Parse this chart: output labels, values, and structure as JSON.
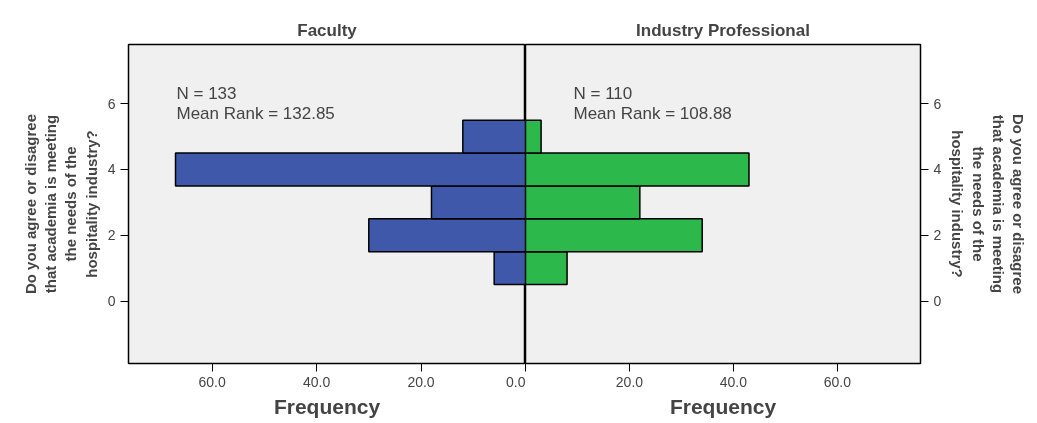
{
  "chart_data": [
    {
      "type": "histogram",
      "orientation": "horizontal",
      "title": "Faculty",
      "xlabel": "Frequency",
      "ylabel": "Do you agree or disagree\nthat academia is meeting\nthe needs of the\nhospitality industry?",
      "bins": [
        0.5,
        1.5,
        2.5,
        3.5,
        4.5,
        5.5
      ],
      "values": [
        6,
        30,
        18,
        67,
        12
      ],
      "color": "#3f58aa",
      "xlim": [
        76,
        0
      ],
      "xticks": [
        {
          "value": 60,
          "label": "60.0"
        },
        {
          "value": 40,
          "label": "40.0"
        },
        {
          "value": 20,
          "label": "20.0"
        },
        {
          "value": 0,
          "label": "0.0"
        }
      ],
      "ylim": [
        -1.9,
        7.8
      ],
      "yticks": [
        0,
        2,
        4,
        6
      ],
      "grid": false,
      "annotations": [
        "N = 133",
        "Mean Rank = 132.85"
      ]
    },
    {
      "type": "histogram",
      "orientation": "horizontal",
      "title": "Industry Professional",
      "xlabel": "Frequency",
      "ylabel": "Do you agree or disagree\nthat academia is meeting\nthe needs of the\nhospitality industry?",
      "bins": [
        0.5,
        1.5,
        2.5,
        3.5,
        4.5,
        5.5
      ],
      "values": [
        8,
        34,
        22,
        43,
        3
      ],
      "color": "#2db84b",
      "xlim": [
        0,
        76
      ],
      "xticks": [
        {
          "value": 0,
          "label": null
        },
        {
          "value": 20,
          "label": "20.0"
        },
        {
          "value": 40,
          "label": "40.0"
        },
        {
          "value": 60,
          "label": "60.0"
        }
      ],
      "ylim": [
        -1.9,
        7.8
      ],
      "yticks": [
        0,
        2,
        4,
        6
      ],
      "grid": false,
      "annotations": [
        "N = 110",
        "Mean Rank = 108.88"
      ]
    }
  ]
}
